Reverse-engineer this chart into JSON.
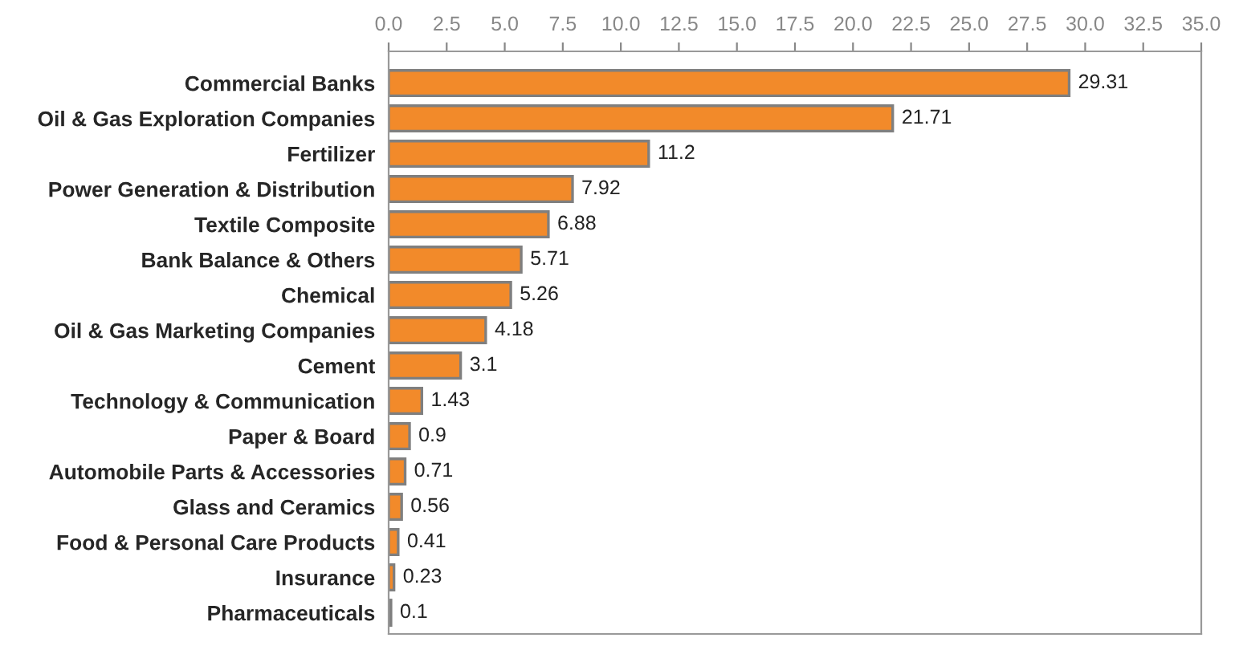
{
  "chart_data": {
    "type": "bar",
    "orientation": "horizontal",
    "categories": [
      "Commercial Banks",
      "Oil & Gas Exploration Companies",
      "Fertilizer",
      "Power Generation & Distribution",
      "Textile Composite",
      "Bank Balance & Others",
      "Chemical",
      "Oil & Gas Marketing Companies",
      "Cement",
      "Technology & Communication",
      "Paper & Board",
      "Automobile Parts & Accessories",
      "Glass and Ceramics",
      "Food & Personal Care Products",
      "Insurance",
      "Pharmaceuticals"
    ],
    "values": [
      29.31,
      21.71,
      11.2,
      7.92,
      6.88,
      5.71,
      5.26,
      4.18,
      3.1,
      1.43,
      0.9,
      0.71,
      0.56,
      0.41,
      0.23,
      0.1
    ],
    "color": "#f28a2a",
    "xlim": [
      0,
      35
    ],
    "xticks": [
      {
        "value": 0,
        "label": "0.0"
      },
      {
        "value": 2.5,
        "label": "2.5"
      },
      {
        "value": 5,
        "label": "5.0"
      },
      {
        "value": 7.5,
        "label": "7.5"
      },
      {
        "value": 10,
        "label": "10.0"
      },
      {
        "value": 12.5,
        "label": "12.5"
      },
      {
        "value": 15,
        "label": "15.0"
      },
      {
        "value": 17.5,
        "label": "17.5"
      },
      {
        "value": 20,
        "label": "20.0"
      },
      {
        "value": 22.5,
        "label": "22.5"
      },
      {
        "value": 25,
        "label": "25.0"
      },
      {
        "value": 27.5,
        "label": "27.5"
      },
      {
        "value": 30,
        "label": "30.0"
      },
      {
        "value": 32.5,
        "label": "32.5"
      },
      {
        "value": 35,
        "label": "35.0"
      }
    ],
    "data_labels": true,
    "grid": false,
    "legend": false
  }
}
